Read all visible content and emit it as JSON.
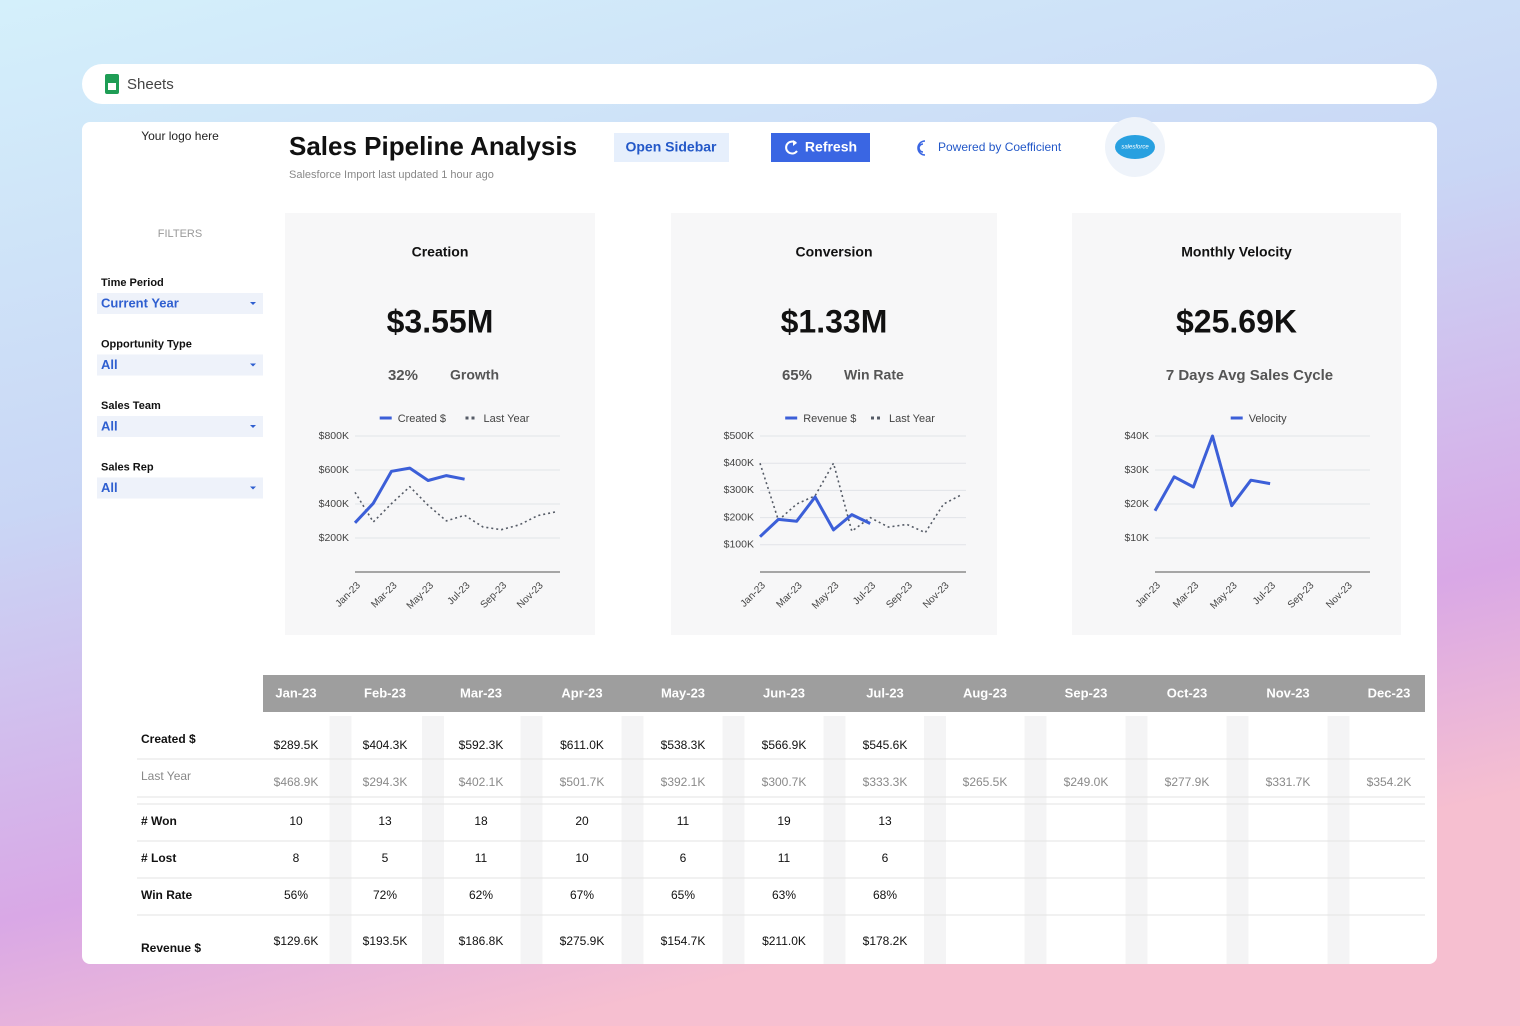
{
  "app": "Sheets",
  "header": {
    "logo": "Your logo here",
    "title": "Sales Pipeline Analysis",
    "subtitle": "Salesforce Import last updated 1 hour ago",
    "buttons": [
      "Open Sidebar",
      "Refresh"
    ],
    "powered_by": "Powered by Coefficient",
    "logo_badge": "salesforce"
  },
  "filters": {
    "heading": "FILTERS",
    "items": [
      {
        "label": "Time Period",
        "value": "Current Year"
      },
      {
        "label": "Opportunity Type",
        "value": "All"
      },
      {
        "label": "Sales Team",
        "value": "All"
      },
      {
        "label": "Sales Rep",
        "value": "All"
      }
    ]
  },
  "cards": [
    {
      "title": "Creation",
      "kpi": "$3.55M",
      "metric": "32%",
      "metric_label": "Growth"
    },
    {
      "title": "Conversion",
      "kpi": "$1.33M",
      "metric": "65%",
      "metric_label": "Win Rate"
    },
    {
      "title": "Monthly Velocity",
      "kpi": "$25.69K",
      "metric": "7 Days Avg Sales Cycle"
    }
  ],
  "chart_data": [
    {
      "type": "line",
      "categories": [
        "Jan-23",
        null,
        "Mar-23",
        null,
        "May-23",
        null,
        "Jul-23",
        null,
        "Sep-23",
        null,
        "Nov-23",
        null
      ],
      "series": [
        {
          "name": "Created $",
          "color": "#3c5fd8",
          "style": "solid",
          "values": [
            289500,
            404300,
            592300,
            611000,
            538300,
            566900,
            545600,
            null,
            null,
            null,
            null,
            null
          ]
        },
        {
          "name": "Last Year",
          "color": "#555b66",
          "style": "dotted",
          "values": [
            468900,
            294300,
            402100,
            501700,
            392100,
            300700,
            333300,
            265500,
            249000,
            277900,
            331700,
            354200
          ]
        }
      ],
      "ylim": [
        0,
        800000
      ],
      "yticks": [
        {
          "value": 200000,
          "label": "$200K"
        },
        {
          "value": 400000,
          "label": "$400K"
        },
        {
          "value": 600000,
          "label": "$600K"
        },
        {
          "value": 800000,
          "label": "$800K"
        }
      ],
      "grid": true,
      "legend": "top"
    },
    {
      "type": "line",
      "categories": [
        "Jan-23",
        null,
        "Mar-23",
        null,
        "May-23",
        null,
        "Jul-23",
        null,
        "Sep-23",
        null,
        "Nov-23",
        null
      ],
      "series": [
        {
          "name": "Revenue $",
          "color": "#3c5fd8",
          "style": "solid",
          "values": [
            129600,
            193500,
            186800,
            275900,
            154700,
            211000,
            178200,
            null,
            null,
            null,
            null,
            null
          ]
        },
        {
          "name": "Last Year",
          "color": "#555b66",
          "style": "dotted",
          "values": [
            400000,
            190000,
            250000,
            280000,
            400000,
            150000,
            200000,
            165000,
            175000,
            145000,
            250000,
            285000
          ]
        }
      ],
      "ylim": [
        0,
        500000
      ],
      "yticks": [
        {
          "value": 100000,
          "label": "$100K"
        },
        {
          "value": 200000,
          "label": "$200K"
        },
        {
          "value": 300000,
          "label": "$300K"
        },
        {
          "value": 400000,
          "label": "$400K"
        },
        {
          "value": 500000,
          "label": "$500K"
        }
      ],
      "grid": true,
      "legend": "top"
    },
    {
      "type": "line",
      "categories": [
        "Jan-23",
        null,
        "Mar-23",
        null,
        "May-23",
        null,
        "Jul-23",
        null,
        "Sep-23",
        null,
        "Nov-23",
        null
      ],
      "series": [
        {
          "name": "Velocity",
          "color": "#3c5fd8",
          "style": "solid",
          "values": [
            18000,
            28000,
            25000,
            40000,
            19500,
            27000,
            26000,
            null,
            null,
            null,
            null,
            null
          ]
        }
      ],
      "ylim": [
        0,
        40000
      ],
      "yticks": [
        {
          "value": 10000,
          "label": "$10K"
        },
        {
          "value": 20000,
          "label": "$20K"
        },
        {
          "value": 30000,
          "label": "$30K"
        },
        {
          "value": 40000,
          "label": "$40K"
        }
      ],
      "grid": true,
      "legend": "top"
    }
  ],
  "table": {
    "columns": [
      "Jan-23",
      "Feb-23",
      "Mar-23",
      "Apr-23",
      "May-23",
      "Jun-23",
      "Jul-23",
      "Aug-23",
      "Sep-23",
      "Oct-23",
      "Nov-23",
      "Dec-23"
    ],
    "rows": [
      {
        "label": "Created $",
        "cells": [
          "$289.5K",
          "$404.3K",
          "$592.3K",
          "$611.0K",
          "$538.3K",
          "$566.9K",
          "$545.6K",
          null,
          null,
          null,
          null,
          null
        ]
      },
      {
        "label": "Last Year",
        "cells": [
          "$468.9K",
          "$294.3K",
          "$402.1K",
          "$501.7K",
          "$392.1K",
          "$300.7K",
          "$333.3K",
          "$265.5K",
          "$249.0K",
          "$277.9K",
          "$331.7K",
          "$354.2K"
        ]
      },
      {
        "label": "# Won",
        "cells": [
          10,
          13,
          18,
          20,
          11,
          19,
          13,
          null,
          null,
          null,
          null,
          null
        ]
      },
      {
        "label": "# Lost",
        "cells": [
          8,
          5,
          11,
          10,
          6,
          11,
          6,
          null,
          null,
          null,
          null,
          null
        ]
      },
      {
        "label": "Win Rate",
        "cells": [
          "56%",
          "72%",
          "62%",
          "67%",
          "65%",
          "63%",
          "68%",
          null,
          null,
          null,
          null,
          null
        ]
      },
      {
        "label": "Revenue $",
        "cells": [
          "$129.6K",
          "$193.5K",
          "$186.8K",
          "$275.9K",
          "$154.7K",
          "$211.0K",
          "$178.2K",
          null,
          null,
          null,
          null,
          null
        ]
      }
    ]
  }
}
